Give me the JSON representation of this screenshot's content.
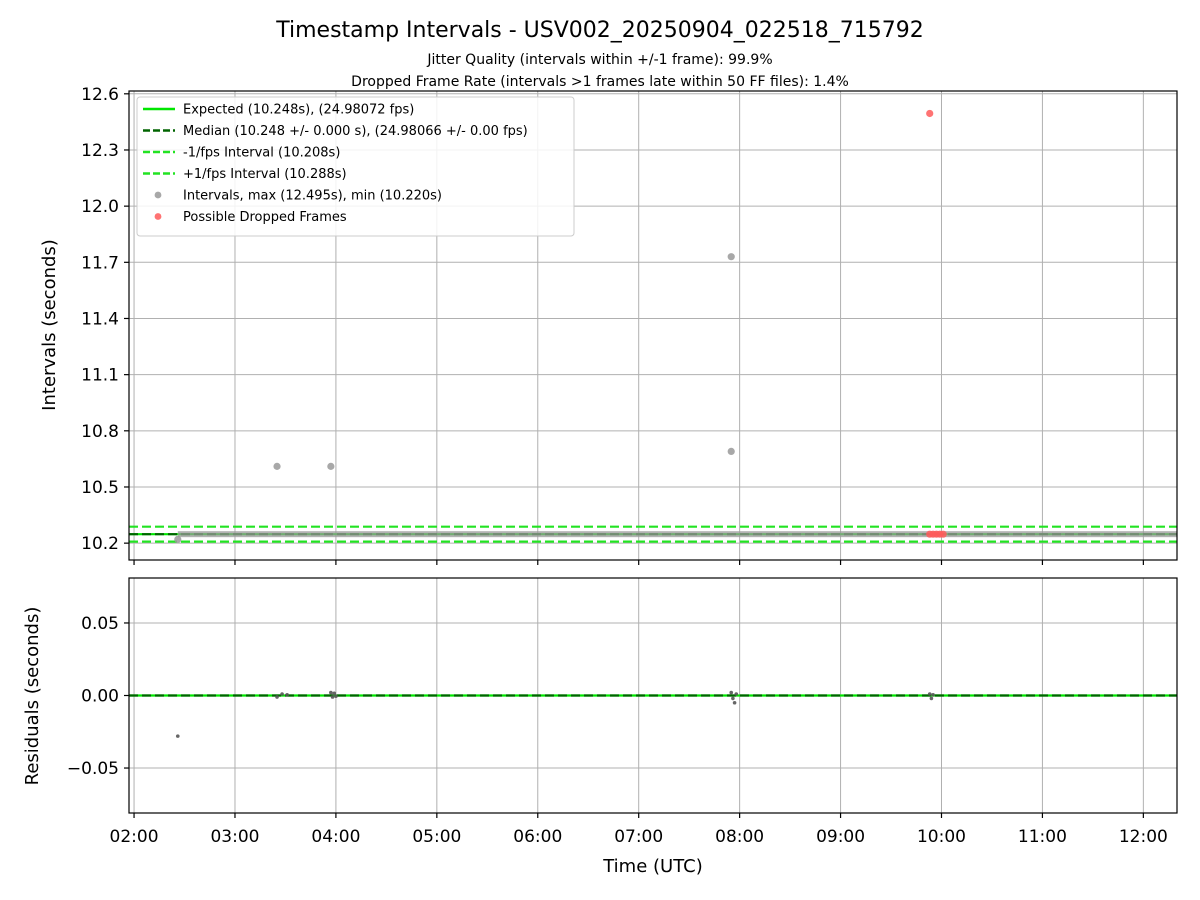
{
  "chart_data": [
    {
      "type": "scatter",
      "title": "Timestamp Intervals - USV002_20250904_022518_715792",
      "subtitle_lines": [
        "Jitter Quality (intervals within +/-1 frame): 99.9%",
        "Dropped Frame Rate (intervals >1 frames late within 50 FF files): 1.4%"
      ],
      "xlabel": "",
      "ylabel": "Intervals (seconds)",
      "xlim": [
        "01:57",
        "12:20"
      ],
      "ylim": [
        10.11,
        12.615
      ],
      "x_ticks": [
        "02:00",
        "03:00",
        "04:00",
        "05:00",
        "06:00",
        "07:00",
        "08:00",
        "09:00",
        "10:00",
        "11:00",
        "12:00"
      ],
      "y_ticks": [
        10.2,
        10.5,
        10.8,
        11.1,
        11.4,
        11.7,
        12.0,
        12.3,
        12.6
      ],
      "y_tick_labels": [
        "10.2",
        "10.5",
        "10.8",
        "11.1",
        "11.4",
        "11.7",
        "12.0",
        "12.3",
        "12.6"
      ],
      "grid": true,
      "legend_position": "top-left",
      "reference_lines": [
        {
          "name": "Expected (10.248s), (24.98072 fps)",
          "y": 10.248,
          "color": "#00e600",
          "style": "solid"
        },
        {
          "name": "Median (10.248 +/- 0.000 s), (24.98066 +/- 0.00 fps)",
          "y": 10.248,
          "color": "#006400",
          "style": "dashed"
        },
        {
          "name": "-1/fps Interval (10.208s)",
          "y": 10.208,
          "color": "#22e322",
          "style": "dashed"
        },
        {
          "name": "+1/fps Interval (10.288s)",
          "y": 10.288,
          "color": "#22e322",
          "style": "dashed"
        }
      ],
      "series": [
        {
          "name": "Intervals, max (12.495s), min (10.220s)",
          "color": "#999999",
          "points": [
            {
              "x": "02:26",
              "y": 10.22
            },
            {
              "x": "03:25",
              "y": 10.61
            },
            {
              "x": "03:57",
              "y": 10.61
            },
            {
              "x": "07:55",
              "y": 11.73
            },
            {
              "x": "07:55",
              "y": 10.69
            }
          ],
          "band": {
            "x_start": "02:26",
            "x_end": "12:20",
            "y": 10.248
          }
        },
        {
          "name": "Possible Dropped Frames",
          "color": "#ff5a5a",
          "points": [
            {
              "x": "09:53",
              "y": 12.495
            },
            {
              "x": "09:53",
              "y": 10.248
            },
            {
              "x": "09:55",
              "y": 10.248
            },
            {
              "x": "09:57",
              "y": 10.248
            },
            {
              "x": "09:59",
              "y": 10.248
            },
            {
              "x": "10:01",
              "y": 10.248
            }
          ]
        }
      ]
    },
    {
      "type": "scatter",
      "xlabel": "Time (UTC)",
      "ylabel": "Residuals (seconds)",
      "xlim": [
        "01:57",
        "12:20"
      ],
      "ylim": [
        -0.081,
        0.081
      ],
      "x_ticks": [
        "02:00",
        "03:00",
        "04:00",
        "05:00",
        "06:00",
        "07:00",
        "08:00",
        "09:00",
        "10:00",
        "11:00",
        "12:00"
      ],
      "y_ticks": [
        0.05,
        0.0,
        -0.05
      ],
      "y_tick_labels": [
        "0.05",
        "0.00",
        "−0.05"
      ],
      "grid": true,
      "reference_lines": [
        {
          "y": 0.0,
          "color": "#00e600",
          "style": "solid"
        },
        {
          "y": 0.0,
          "color": "#006400",
          "style": "dashed"
        }
      ],
      "series": [
        {
          "color": "#555555",
          "points": [
            {
              "x": "02:26",
              "y": -0.028
            },
            {
              "x": "03:25",
              "y": -0.001
            },
            {
              "x": "03:28",
              "y": 0.001
            },
            {
              "x": "03:31",
              "y": 0.0005
            },
            {
              "x": "03:57",
              "y": 0.002
            },
            {
              "x": "03:58",
              "y": -0.001
            },
            {
              "x": "03:59",
              "y": 0.0015
            },
            {
              "x": "04:00",
              "y": -0.0005
            },
            {
              "x": "07:55",
              "y": 0.002
            },
            {
              "x": "07:56",
              "y": -0.002
            },
            {
              "x": "07:57",
              "y": -0.005
            },
            {
              "x": "07:58",
              "y": 0.001
            },
            {
              "x": "09:53",
              "y": 0.001
            },
            {
              "x": "09:54",
              "y": -0.002
            },
            {
              "x": "09:55",
              "y": 0.0005
            }
          ]
        }
      ]
    }
  ]
}
